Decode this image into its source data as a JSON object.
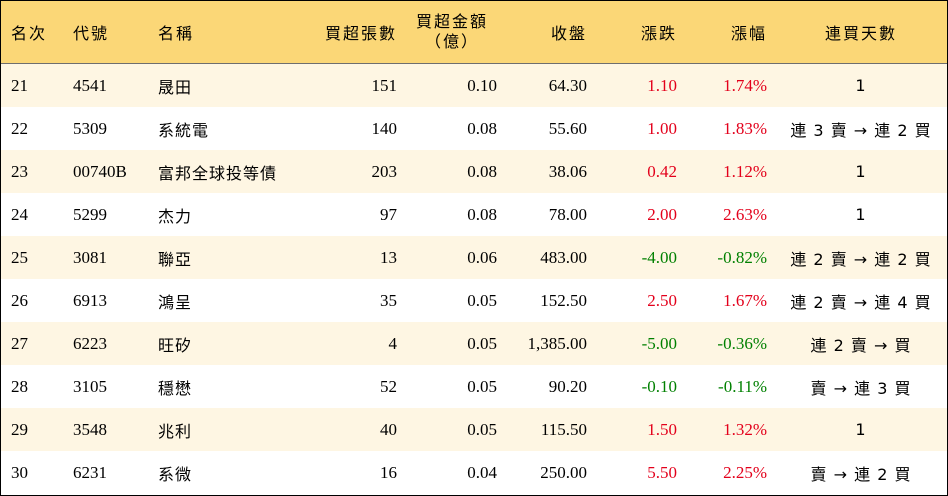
{
  "colors": {
    "header_bg": "#fbd777",
    "odd_row_bg": "#fef6e3",
    "up": "#e3001b",
    "down": "#008000"
  },
  "headers": {
    "rank": "名次",
    "code": "代號",
    "name": "名稱",
    "lots": "買超張數",
    "amount_line1": "買超金額",
    "amount_line2": "（億）",
    "close": "收盤",
    "change": "漲跌",
    "pct": "漲幅",
    "streak": "連買天數"
  },
  "rows": [
    {
      "rank": "21",
      "code": "4541",
      "name": "晟田",
      "lots": "151",
      "amount": "0.10",
      "close": "64.30",
      "change": "1.10",
      "pct": "1.74%",
      "dir": "up",
      "streak": "1"
    },
    {
      "rank": "22",
      "code": "5309",
      "name": "系統電",
      "lots": "140",
      "amount": "0.08",
      "close": "55.60",
      "change": "1.00",
      "pct": "1.83%",
      "dir": "up",
      "streak": "連 3 賣 → 連 2 買"
    },
    {
      "rank": "23",
      "code": "00740B",
      "name": "富邦全球投等債",
      "lots": "203",
      "amount": "0.08",
      "close": "38.06",
      "change": "0.42",
      "pct": "1.12%",
      "dir": "up",
      "streak": "1"
    },
    {
      "rank": "24",
      "code": "5299",
      "name": "杰力",
      "lots": "97",
      "amount": "0.08",
      "close": "78.00",
      "change": "2.00",
      "pct": "2.63%",
      "dir": "up",
      "streak": "1"
    },
    {
      "rank": "25",
      "code": "3081",
      "name": "聯亞",
      "lots": "13",
      "amount": "0.06",
      "close": "483.00",
      "change": "-4.00",
      "pct": "-0.82%",
      "dir": "down",
      "streak": "連 2 賣 → 連 2 買"
    },
    {
      "rank": "26",
      "code": "6913",
      "name": "鴻呈",
      "lots": "35",
      "amount": "0.05",
      "close": "152.50",
      "change": "2.50",
      "pct": "1.67%",
      "dir": "up",
      "streak": "連 2 賣 → 連 4 買"
    },
    {
      "rank": "27",
      "code": "6223",
      "name": "旺矽",
      "lots": "4",
      "amount": "0.05",
      "close": "1,385.00",
      "change": "-5.00",
      "pct": "-0.36%",
      "dir": "down",
      "streak": "連 2 賣 → 買"
    },
    {
      "rank": "28",
      "code": "3105",
      "name": "穩懋",
      "lots": "52",
      "amount": "0.05",
      "close": "90.20",
      "change": "-0.10",
      "pct": "-0.11%",
      "dir": "down",
      "streak": "賣 → 連 3 買"
    },
    {
      "rank": "29",
      "code": "3548",
      "name": "兆利",
      "lots": "40",
      "amount": "0.05",
      "close": "115.50",
      "change": "1.50",
      "pct": "1.32%",
      "dir": "up",
      "streak": "1"
    },
    {
      "rank": "30",
      "code": "6231",
      "name": "系微",
      "lots": "16",
      "amount": "0.04",
      "close": "250.00",
      "change": "5.50",
      "pct": "2.25%",
      "dir": "up",
      "streak": "賣 → 連 2 買"
    }
  ]
}
